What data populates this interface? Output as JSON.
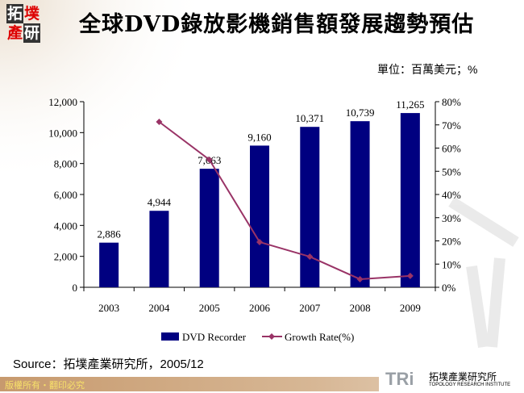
{
  "header": {
    "logo_chars": [
      "拓",
      "墣",
      "產",
      "研"
    ],
    "title": "全球DVD錄放影機銷售額發展趨勢預估",
    "unit": "單位：百萬美元；%"
  },
  "footer": {
    "source": "Source：拓墣產業研究所，2005/12",
    "copyright": "版權所有・翻印必究",
    "org_logo": "TRi",
    "org_name_zh": "拓墣產業研究所",
    "org_name_en": "TOPOLOGY RESEARCH INSTITUTE"
  },
  "colors": {
    "bar": "#000080",
    "line": "#993366"
  },
  "chart_data": {
    "type": "bar",
    "categories": [
      "2003",
      "2004",
      "2005",
      "2006",
      "2007",
      "2008",
      "2009"
    ],
    "series": [
      {
        "name": "DVD Recorder",
        "type": "bar",
        "axis": "left",
        "values": [
          2886,
          4944,
          7663,
          9160,
          10371,
          10739,
          11265
        ],
        "labels": [
          "2,886",
          "4,944",
          "7,663",
          "9,160",
          "10,371",
          "10,739",
          "11,265"
        ]
      },
      {
        "name": "Growth Rate(%)",
        "type": "line",
        "axis": "right",
        "values": [
          null,
          71.3,
          55.0,
          19.5,
          13.2,
          3.5,
          4.9
        ]
      }
    ],
    "ylim": [
      0,
      12000
    ],
    "yticks": [
      "0",
      "2,000",
      "4,000",
      "6,000",
      "8,000",
      "10,000",
      "12,000"
    ],
    "y2lim": [
      0,
      80
    ],
    "y2ticks": [
      "0%",
      "10%",
      "20%",
      "30%",
      "40%",
      "50%",
      "60%",
      "70%",
      "80%"
    ],
    "legend": "bottom",
    "grid": false
  }
}
